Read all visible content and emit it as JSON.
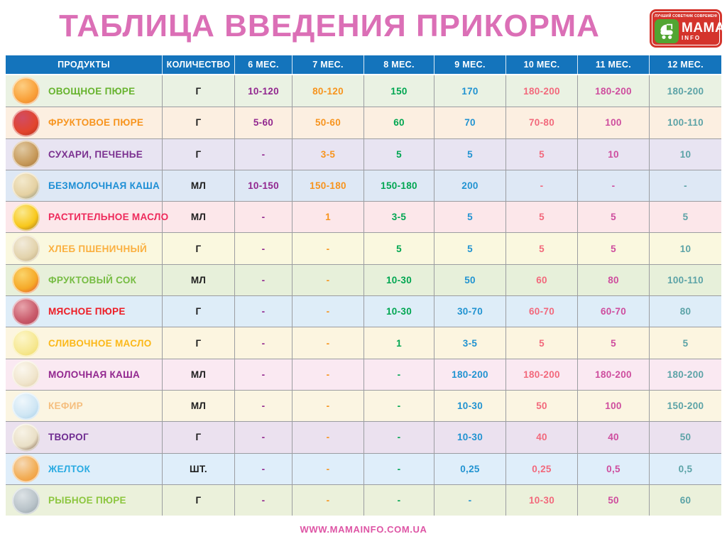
{
  "title": "ТАБЛИЦА ВВЕДЕНИЯ ПРИКОРМА",
  "logo": {
    "tagline": "ЛУЧШИЙ СОВЕТНИК СОВРЕМЕННОЙ МАМЫ",
    "brand": "МАМА",
    "info": "INFO"
  },
  "footer": {
    "url": "WWW.MAMAINFO.COM.UA"
  },
  "colors": {
    "title": "#DB6FB6",
    "header-bg": "#1474BC",
    "grid-line": "#9B9DA1",
    "footer": "#DE55A5",
    "unit-text": "#1F1F1F",
    "logo-red": "#D4342C",
    "logo-green": "#52A532"
  },
  "table": {
    "columns": [
      "ПРОДУКТЫ",
      "КОЛИЧЕСТВО",
      "6 МЕС.",
      "7 МЕС.",
      "8 МЕС.",
      "9 МЕС.",
      "10 МЕС.",
      "11 МЕС.",
      "12 МЕС."
    ],
    "month_value_colors": [
      "#92278F",
      "#F7941E",
      "#00A651",
      "#2193D1",
      "#F2697C",
      "#CE4D9E",
      "#5CA3A7"
    ],
    "rows": [
      {
        "product": "ОВОЩНОЕ ПЮРЕ",
        "unit": "Г",
        "label_color": "#67B32E",
        "row_bg": "#EAF2E3",
        "icon": "vegetable-puree-icon",
        "icon_colors": [
          "#FDCE82",
          "#F9A13A",
          "#E4762A"
        ],
        "values": [
          "10-120",
          "80-120",
          "150",
          "170",
          "180-200",
          "180-200",
          "180-200"
        ]
      },
      {
        "product": "ФРУКТОВОЕ ПЮРЕ",
        "unit": "Г",
        "label_color": "#F7941E",
        "row_bg": "#FCEFE1",
        "icon": "fruit-puree-icon",
        "icon_colors": [
          "#D14C63",
          "#E2452E",
          "#A52A1C"
        ],
        "values": [
          "5-60",
          "50-60",
          "60",
          "70",
          "70-80",
          "100",
          "100-110"
        ]
      },
      {
        "product": "СУХАРИ, ПЕЧЕНЬЕ",
        "unit": "Г",
        "label_color": "#7B3190",
        "row_bg": "#E8E4F2",
        "icon": "rusks-cookies-icon",
        "icon_colors": [
          "#E0C9A2",
          "#C79A5B",
          "#9C6B33"
        ],
        "values": [
          "-",
          "3-5",
          "5",
          "5",
          "5",
          "10",
          "10"
        ]
      },
      {
        "product": "БЕЗМОЛОЧНАЯ КАША",
        "unit": "МЛ",
        "label_color": "#1E8FD5",
        "row_bg": "#DEE8F5",
        "icon": "dairy-free-porridge-icon",
        "icon_colors": [
          "#F3E9CC",
          "#E5D1A2",
          "#6E7B70"
        ],
        "values": [
          "10-150",
          "150-180",
          "150-180",
          "200",
          "-",
          "-",
          "-"
        ]
      },
      {
        "product": "РАСТИТЕЛЬНОЕ МАСЛО",
        "unit": "МЛ",
        "label_color": "#EE2A5B",
        "row_bg": "#FCE7EA",
        "icon": "sunflower-oil-icon",
        "icon_colors": [
          "#FBE98F",
          "#F8C81C",
          "#8A5A20"
        ],
        "values": [
          "-",
          "1",
          "3-5",
          "5",
          "5",
          "5",
          "5"
        ]
      },
      {
        "product": "ХЛЕБ ПШЕНИЧНЫЙ",
        "unit": "Г",
        "label_color": "#FBB040",
        "row_bg": "#FAF8DF",
        "icon": "wheat-bread-icon",
        "icon_colors": [
          "#F2EBDB",
          "#E3D3AC",
          "#B5A077"
        ],
        "values": [
          "-",
          "-",
          "5",
          "5",
          "5",
          "5",
          "10"
        ]
      },
      {
        "product": "ФРУКТОВЫЙ СОК",
        "unit": "МЛ",
        "label_color": "#76BC43",
        "row_bg": "#E7F0DA",
        "icon": "fruit-juice-icon",
        "icon_colors": [
          "#FBD46A",
          "#F5A928",
          "#D93A2B"
        ],
        "values": [
          "-",
          "-",
          "10-30",
          "50",
          "60",
          "80",
          "100-110"
        ]
      },
      {
        "product": "МЯСНОЕ ПЮРЕ",
        "unit": "Г",
        "label_color": "#ED1C24",
        "row_bg": "#DEEDF8",
        "icon": "meat-puree-icon",
        "icon_colors": [
          "#E8A4AC",
          "#C95B6B",
          "#A93A4E"
        ],
        "values": [
          "-",
          "-",
          "10-30",
          "30-70",
          "60-70",
          "60-70",
          "80"
        ]
      },
      {
        "product": "СЛИВОЧНОЕ МАСЛО",
        "unit": "Г",
        "label_color": "#FBB819",
        "row_bg": "#FCF5E0",
        "icon": "butter-icon",
        "icon_colors": [
          "#FDF6C9",
          "#F6E893",
          "#EED75A"
        ],
        "values": [
          "-",
          "-",
          "1",
          "3-5",
          "5",
          "5",
          "5"
        ]
      },
      {
        "product": "МОЛОЧНАЯ КАША",
        "unit": "МЛ",
        "label_color": "#92278F",
        "row_bg": "#FAE9F2",
        "icon": "milk-porridge-icon",
        "icon_colors": [
          "#FBF7EE",
          "#F0E5CC",
          "#DAC69E"
        ],
        "values": [
          "-",
          "-",
          "-",
          "180-200",
          "180-200",
          "180-200",
          "180-200"
        ]
      },
      {
        "product": "КЕФИР",
        "unit": "МЛ",
        "label_color": "#F5BE7E",
        "row_bg": "#FBF5E2",
        "icon": "kefir-icon",
        "icon_colors": [
          "#EFF7FC",
          "#CFE6F4",
          "#9CC8E4"
        ],
        "values": [
          "-",
          "-",
          "-",
          "10-30",
          "50",
          "100",
          "150-200"
        ]
      },
      {
        "product": "ТВОРОГ",
        "unit": "Г",
        "label_color": "#6F2C91",
        "row_bg": "#EBE1EF",
        "icon": "cottage-cheese-icon",
        "icon_colors": [
          "#F8F3E6",
          "#E9DFC6",
          "#5E3A22"
        ],
        "values": [
          "-",
          "-",
          "-",
          "10-30",
          "40",
          "40",
          "50"
        ]
      },
      {
        "product": "ЖЕЛТОК",
        "unit": "ШТ.",
        "label_color": "#29ABE2",
        "row_bg": "#DFEEFA",
        "icon": "egg-yolk-icon",
        "icon_colors": [
          "#F6D9B5",
          "#F2AE57",
          "#EF8D2A"
        ],
        "values": [
          "-",
          "-",
          "-",
          "0,25",
          "0,25",
          "0,5",
          "0,5"
        ]
      },
      {
        "product": "РЫБНОЕ ПЮРЕ",
        "unit": "Г",
        "label_color": "#8CC63F",
        "row_bg": "#EBF1DB",
        "icon": "fish-puree-icon",
        "icon_colors": [
          "#DDE3E6",
          "#B9C3C9",
          "#87939B"
        ],
        "values": [
          "-",
          "-",
          "-",
          "-",
          "10-30",
          "50",
          "60"
        ]
      }
    ]
  }
}
